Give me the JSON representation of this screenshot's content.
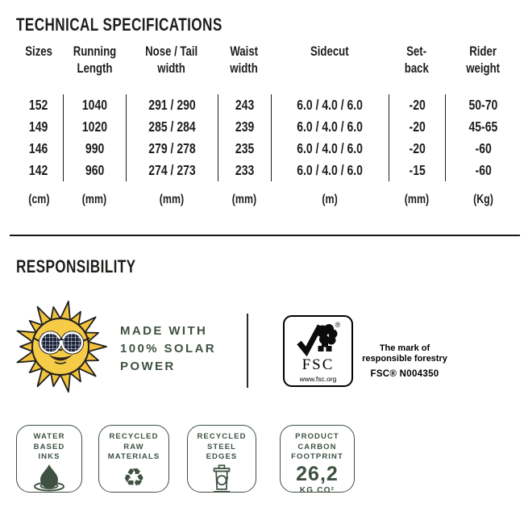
{
  "colors": {
    "ink": "#1d1d1b",
    "green": "#3e5142",
    "sun_yellow": "#f2c23c",
    "sun_face": "#f5cb47",
    "lens_navy": "#182138"
  },
  "specs": {
    "title": "TECHNICAL SPECIFICATIONS",
    "columns": [
      {
        "l1": "Sizes",
        "l2": "",
        "unit": "(cm)"
      },
      {
        "l1": "Running",
        "l2": "Length",
        "unit": "(mm)"
      },
      {
        "l1": "Nose / Tail",
        "l2": "width",
        "unit": "(mm)"
      },
      {
        "l1": "Waist",
        "l2": "width",
        "unit": "(mm)"
      },
      {
        "l1": "Sidecut",
        "l2": "",
        "unit": "(m)"
      },
      {
        "l1": "Set-",
        "l2": "back",
        "unit": "(mm)"
      },
      {
        "l1": "Rider",
        "l2": "weight",
        "unit": "(Kg)"
      }
    ],
    "rows": [
      [
        "152",
        "1040",
        "291 / 290",
        "243",
        "6.0 / 4.0 / 6.0",
        "-20",
        "50-70"
      ],
      [
        "149",
        "1020",
        "285 / 284",
        "239",
        "6.0 / 4.0 / 6.0",
        "-20",
        "45-65"
      ],
      [
        "146",
        "990",
        "279 / 278",
        "235",
        "6.0 / 4.0 / 6.0",
        "-20",
        "-60"
      ],
      [
        "142",
        "960",
        "274 / 273",
        "233",
        "6.0 / 4.0 / 6.0",
        "-15",
        "-60"
      ]
    ]
  },
  "responsibility": {
    "title": "RESPONSIBILITY",
    "solar": {
      "icon": "sun-sunglasses-icon",
      "line1": "MADE WITH",
      "line2": "100% SOLAR",
      "line3": "POWER"
    },
    "fsc": {
      "icon": "fsc-checkmark-tree-icon",
      "acronym": "FSC",
      "url": "www.fsc.org",
      "mark_line1": "The mark of",
      "mark_line2": "responsible forestry",
      "license": "FSC® N004350"
    },
    "badges": [
      {
        "line1": "WATER",
        "line2": "BASED",
        "line3": "INKS",
        "icon": "water-drop-icon"
      },
      {
        "line1": "RECYCLED",
        "line2": "RAW",
        "line3": "MATERIALS",
        "icon": "recycle-arrows-icon",
        "icon_glyph": "♻"
      },
      {
        "line1": "RECYCLED",
        "line2": "STEEL",
        "line3": "EDGES",
        "icon": "steel-bin-icon"
      },
      {
        "line1": "PRODUCT",
        "line2": "CARBON",
        "line3": "FOOTPRINT",
        "value": "26,2",
        "unit": "KG CO²"
      }
    ]
  }
}
